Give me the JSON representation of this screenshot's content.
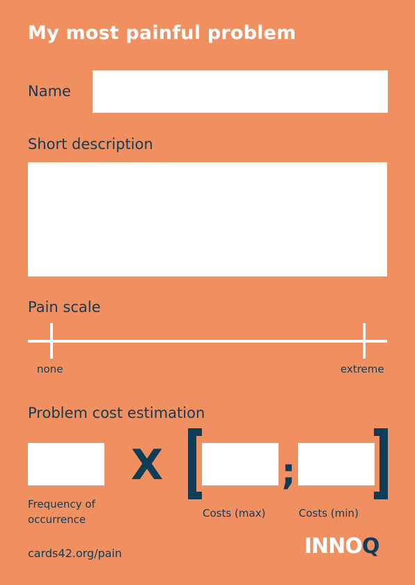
{
  "title": "My most painful problem",
  "name_label": "Name",
  "description_label": "Short description",
  "pain_scale": {
    "label": "Pain scale",
    "min_label": "none",
    "max_label": "extreme"
  },
  "cost": {
    "label": "Problem cost estimation",
    "frequency_label_line1": "Frequency of",
    "frequency_label_line2": "occurrence",
    "multiply_symbol": "X",
    "separator": ";",
    "costs_max_label": "Costs (max)",
    "costs_min_label": "Costs (min)"
  },
  "footer": {
    "url": "cards42.org/pain",
    "logo_main": "INNO",
    "logo_q": "Q"
  },
  "colors": {
    "background": "#F08F60",
    "accent_dark": "#0F3D57",
    "field": "#FFFFFF"
  }
}
